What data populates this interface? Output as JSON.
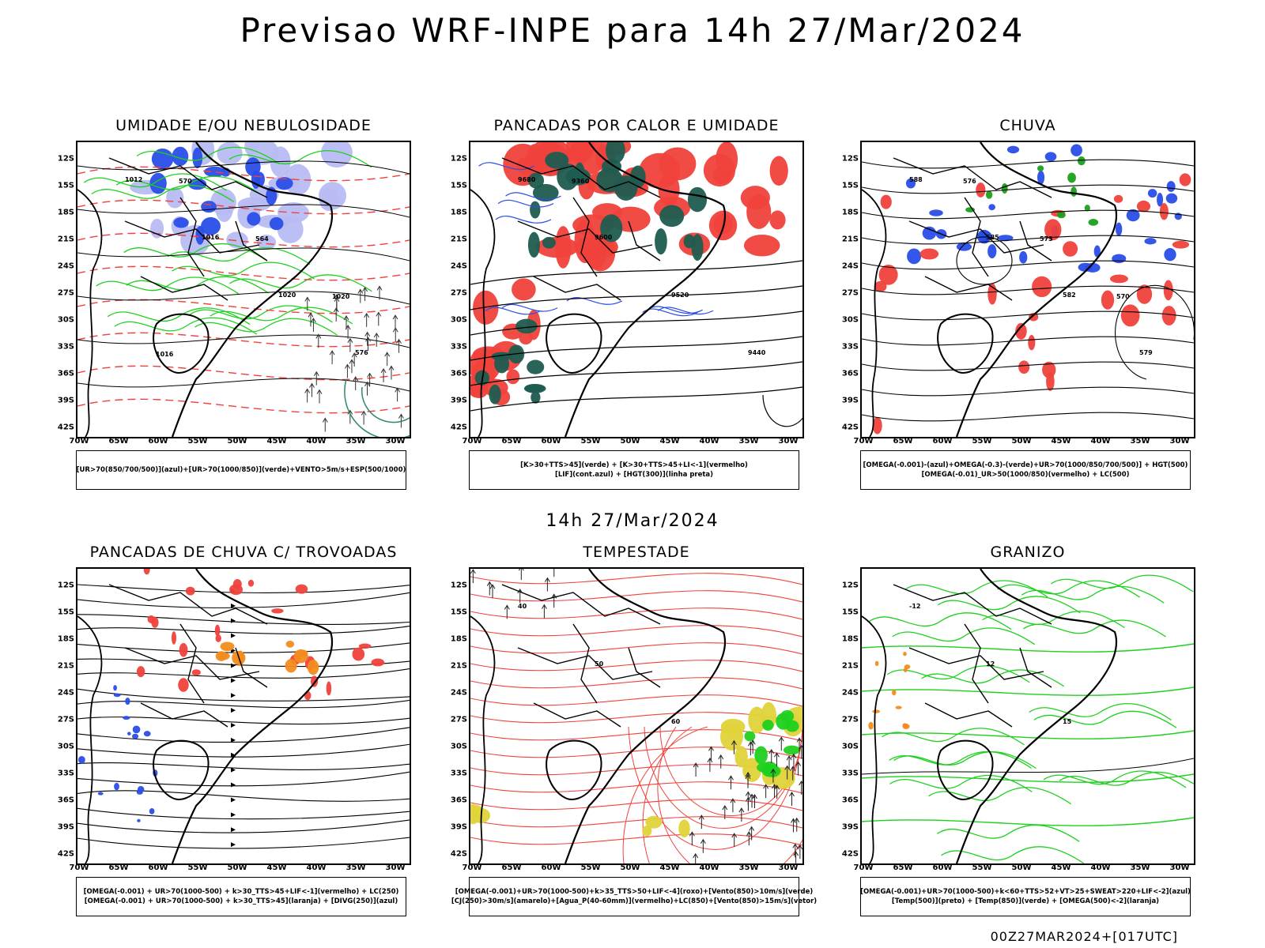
{
  "header": {
    "title": "Previsao WRF-INPE  para 14h 27/Mar/2024"
  },
  "mid": {
    "title": "14h 27/Mar/2024"
  },
  "footer": {
    "run": "00Z27MAR2024+[017UTC]"
  },
  "axes": {
    "lat": [
      "12S",
      "15S",
      "18S",
      "21S",
      "24S",
      "27S",
      "30S",
      "33S",
      "36S",
      "39S",
      "42S"
    ],
    "lon": [
      "70W",
      "65W",
      "60W",
      "55W",
      "50W",
      "45W",
      "40W",
      "35W",
      "30W"
    ]
  },
  "panels": [
    {
      "title": "UMIDADE E/OU NEBULOSIDADE",
      "legend": [
        "[UR>70(850/700/500)](azul)+[UR>70(1000/850)](verde)+VENTO>5m/s+ESP(500/1000)"
      ],
      "contour_labels": [
        "1012",
        "1016",
        "1020",
        "576",
        "570",
        "564",
        "1020",
        "1016"
      ]
    },
    {
      "title": "PANCADAS POR CALOR E UMIDADE",
      "legend": [
        "[K>30+TTS>45](verde) + [K>30+TTS>45+LI<-1](vermelho)",
        "[LIF](cont.azul) + [HGT(300)](linha preta)"
      ],
      "contour_labels": [
        "9680",
        "9600",
        "9520",
        "9440",
        "9360"
      ]
    },
    {
      "title": "CHUVA",
      "legend": [
        "[OMEGA(-0.001)-(azul)+OMEGA(-0.3)-(verde)+UR>70(1000/850/700/500)] + HGT(500)",
        "[OMEGA(-0.01)_UR>50(1000/850)(vermelho) + LC(500)"
      ],
      "contour_labels": [
        "588",
        "585",
        "582",
        "579",
        "576",
        "573",
        "570"
      ]
    },
    {
      "title": "PANCADAS DE CHUVA C/ TROVOADAS",
      "legend": [
        "[OMEGA(-0.001) + UR>70(1000-500) + k>30_TTS>45+LIF<-1](vermelho) + LC(250)",
        "[OMEGA(-0.001) + UR>70(1000-500) + k>30_TTS>45](laranja) + [DIVG(250)](azul)"
      ],
      "contour_labels": []
    },
    {
      "title": "TEMPESTADE",
      "legend": [
        "[OMEGA(-0.001)+UR>70(1000-500)+k>35_TTS>50+LIF<-4](roxo)+[Vento(850)>10m/s](verde)",
        "[CJ(250)>30m/s](amarelo)+[Agua_P(40-60mm)](vermelho)+LC(850)+[Vento(850)>15m/s](vetor)"
      ],
      "contour_labels": [
        "40",
        "50",
        "60"
      ]
    },
    {
      "title": "GRANIZO",
      "legend": [
        "[OMEGA(-0.001)+UR>70(1000-500)+k<60+TTS>52+VT>25+SWEAT>220+LIF<-2](azul)",
        "[Temp(500)](preto) + [Temp(850)](verde) + [OMEGA(500)<-2](laranja)"
      ],
      "contour_labels": [
        "-12",
        "12",
        "15"
      ]
    }
  ],
  "colors": {
    "red": "#f0413c",
    "green": "#1fd01f",
    "blue": "#2a4ee8",
    "darkgreen": "#1f5c50",
    "orange": "#f28c1e",
    "yellow": "#e0d33a",
    "lightblue": "#b8bcf2"
  }
}
